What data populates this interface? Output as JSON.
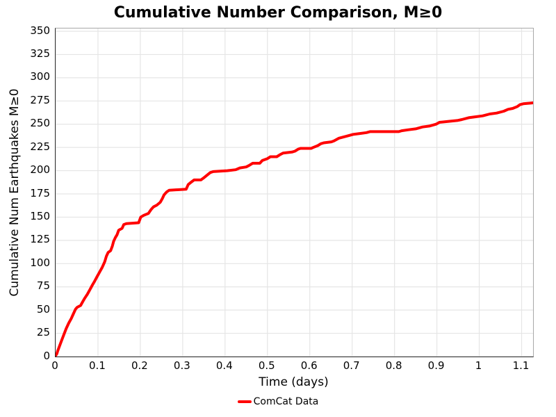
{
  "title": "Cumulative Number Comparison, M≥0",
  "colors": {
    "series_red": "#ff0000",
    "gridline": "#e5e5e5",
    "axis_dark": "#2a2a2a",
    "axis_light": "#a8a8a8",
    "background": "#ffffff",
    "text": "#000000"
  },
  "chart_data": {
    "type": "line",
    "title": "Cumulative Number Comparison, M≥0",
    "xlabel": "Time (days)",
    "ylabel": "Cumulative Num Earthquakes M≥0",
    "xlim": [
      0,
      1.127
    ],
    "ylim": [
      0,
      353
    ],
    "grid": true,
    "legend_position": "bottom-center",
    "xticks": [
      0,
      0.1,
      0.2,
      0.3,
      0.4,
      0.5,
      0.6,
      0.7,
      0.8,
      0.9,
      1,
      1.1
    ],
    "xtick_labels": [
      "0",
      "0.1",
      "0.2",
      "0.3",
      "0.4",
      "0.5",
      "0.6",
      "0.7",
      "0.8",
      "0.9",
      "1",
      "1.1"
    ],
    "yticks": [
      0,
      25,
      50,
      75,
      100,
      125,
      150,
      175,
      200,
      225,
      250,
      275,
      300,
      325,
      350
    ],
    "ytick_labels": [
      "0",
      "25",
      "50",
      "75",
      "100",
      "125",
      "150",
      "175",
      "200",
      "225",
      "250",
      "275",
      "300",
      "325",
      "350"
    ],
    "series": [
      {
        "name": "ComCat Data",
        "color": "#ff0000",
        "line_width": 4,
        "points": [
          [
            0,
            1
          ],
          [
            0.003,
            3
          ],
          [
            0.005,
            6
          ],
          [
            0.009,
            11
          ],
          [
            0.014,
            17
          ],
          [
            0.019,
            23
          ],
          [
            0.025,
            30
          ],
          [
            0.031,
            36
          ],
          [
            0.037,
            41
          ],
          [
            0.042,
            46
          ],
          [
            0.047,
            51
          ],
          [
            0.051,
            53
          ],
          [
            0.059,
            55
          ],
          [
            0.064,
            59
          ],
          [
            0.069,
            63
          ],
          [
            0.075,
            67
          ],
          [
            0.081,
            72
          ],
          [
            0.087,
            77
          ],
          [
            0.092,
            81
          ],
          [
            0.098,
            86
          ],
          [
            0.104,
            91
          ],
          [
            0.11,
            96
          ],
          [
            0.116,
            102
          ],
          [
            0.12,
            108
          ],
          [
            0.124,
            112
          ],
          [
            0.13,
            114
          ],
          [
            0.134,
            119
          ],
          [
            0.137,
            124
          ],
          [
            0.141,
            128
          ],
          [
            0.145,
            131
          ],
          [
            0.149,
            136
          ],
          [
            0.157,
            138
          ],
          [
            0.161,
            142
          ],
          [
            0.167,
            143
          ],
          [
            0.196,
            144
          ],
          [
            0.201,
            150
          ],
          [
            0.208,
            152
          ],
          [
            0.219,
            154
          ],
          [
            0.225,
            158
          ],
          [
            0.231,
            161
          ],
          [
            0.239,
            163
          ],
          [
            0.247,
            166
          ],
          [
            0.252,
            170
          ],
          [
            0.256,
            174
          ],
          [
            0.262,
            177
          ],
          [
            0.268,
            179
          ],
          [
            0.308,
            180
          ],
          [
            0.313,
            185
          ],
          [
            0.321,
            188
          ],
          [
            0.327,
            190
          ],
          [
            0.343,
            190
          ],
          [
            0.349,
            192
          ],
          [
            0.357,
            195
          ],
          [
            0.365,
            198
          ],
          [
            0.372,
            199
          ],
          [
            0.405,
            200
          ],
          [
            0.425,
            201
          ],
          [
            0.435,
            203
          ],
          [
            0.45,
            204
          ],
          [
            0.458,
            206
          ],
          [
            0.465,
            208
          ],
          [
            0.482,
            208
          ],
          [
            0.488,
            211
          ],
          [
            0.5,
            213
          ],
          [
            0.507,
            215
          ],
          [
            0.522,
            215
          ],
          [
            0.529,
            217
          ],
          [
            0.537,
            219
          ],
          [
            0.558,
            220
          ],
          [
            0.565,
            221
          ],
          [
            0.572,
            223
          ],
          [
            0.578,
            224
          ],
          [
            0.603,
            224
          ],
          [
            0.608,
            225
          ],
          [
            0.619,
            227
          ],
          [
            0.626,
            229
          ],
          [
            0.633,
            230
          ],
          [
            0.651,
            231
          ],
          [
            0.657,
            232
          ],
          [
            0.669,
            235
          ],
          [
            0.686,
            237
          ],
          [
            0.702,
            239
          ],
          [
            0.718,
            240
          ],
          [
            0.734,
            241
          ],
          [
            0.742,
            242
          ],
          [
            0.81,
            242
          ],
          [
            0.817,
            243
          ],
          [
            0.833,
            244
          ],
          [
            0.85,
            245
          ],
          [
            0.866,
            247
          ],
          [
            0.882,
            248
          ],
          [
            0.898,
            250
          ],
          [
            0.906,
            252
          ],
          [
            0.926,
            253
          ],
          [
            0.948,
            254
          ],
          [
            0.959,
            255
          ],
          [
            0.975,
            257
          ],
          [
            0.992,
            258
          ],
          [
            1.008,
            259
          ],
          [
            1.025,
            261
          ],
          [
            1.041,
            262
          ],
          [
            1.058,
            264
          ],
          [
            1.068,
            266
          ],
          [
            1.079,
            267
          ],
          [
            1.09,
            269
          ],
          [
            1.096,
            271
          ],
          [
            1.104,
            272
          ],
          [
            1.127,
            273
          ]
        ]
      }
    ],
    "legend_entries": [
      {
        "label": "ComCat Data",
        "color": "#ff0000"
      }
    ]
  }
}
